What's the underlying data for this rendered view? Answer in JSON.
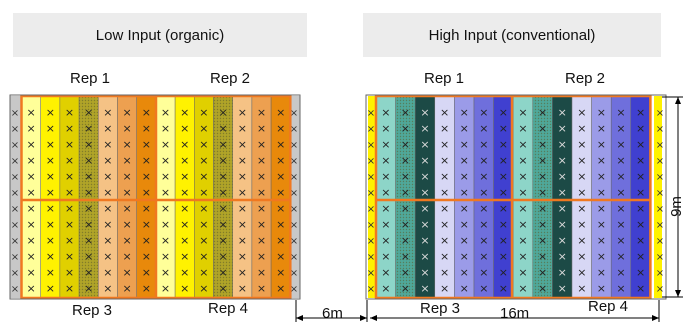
{
  "fields": [
    {
      "title": "Low Input (organic)",
      "rep_labels": [
        "Rep 1",
        "Rep 2",
        "Rep 3",
        "Rep 4"
      ],
      "strip_colors": [
        "#ffff99",
        "#fff200",
        "#e0d000",
        "#b0a428",
        "#f5c285",
        "#eda050",
        "#e8890b",
        "#ffff99",
        "#fff200",
        "#e0d000",
        "#b0a428",
        "#f5c285",
        "#eda050",
        "#e8890b"
      ],
      "textured_strips": [
        3,
        10
      ],
      "divider_color": "#f07820"
    },
    {
      "title": "High Input (conventional)",
      "rep_labels": [
        "Rep 1",
        "Rep 2",
        "Rep 3",
        "Rep 4"
      ],
      "strip_colors": [
        "#8dd5c8",
        "#4fa89a",
        "#1c4a46",
        "#d7d7f5",
        "#9b9be8",
        "#6f6fdc",
        "#4040d0",
        "#8dd5c8",
        "#4fa89a",
        "#1c4a46",
        "#d7d7f5",
        "#9b9be8",
        "#6f6fdc",
        "#4040d0"
      ],
      "textured_strips": [
        1,
        8
      ],
      "divider_color": "#f07820"
    }
  ],
  "dimensions": {
    "gap": "6m",
    "width": "16m",
    "height": "9m"
  },
  "plant_marker": "×"
}
